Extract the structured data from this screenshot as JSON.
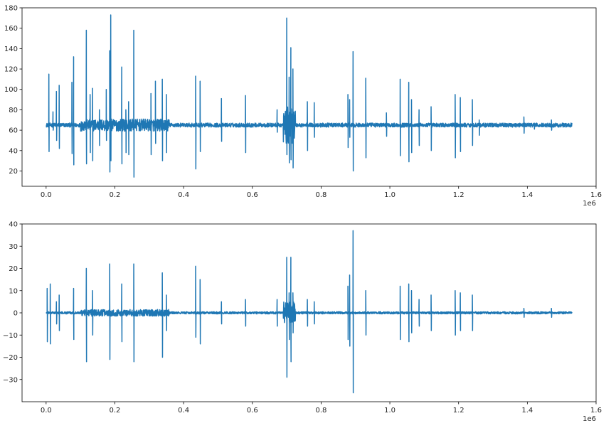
{
  "chart_data": [
    {
      "type": "line",
      "color": "#1f77b4",
      "xlim": [
        -70000,
        1600000
      ],
      "ylim": [
        5,
        180
      ],
      "x_ticks": [
        0,
        200000,
        400000,
        600000,
        800000,
        1000000,
        1200000,
        1400000,
        1600000
      ],
      "x_tick_labels": [
        "0.0",
        "0.2",
        "0.4",
        "0.6",
        "0.8",
        "1.0",
        "1.2",
        "1.4",
        "1.6"
      ],
      "x_offset_label": "1e6",
      "y_ticks": [
        20,
        40,
        60,
        80,
        100,
        120,
        140,
        160,
        180
      ],
      "y_tick_labels": [
        "20",
        "40",
        "60",
        "80",
        "100",
        "120",
        "140",
        "160",
        "180"
      ],
      "x_range": [
        0,
        1530000
      ],
      "baseline": 65,
      "noise": 2,
      "noisy_regions": [
        [
          100000,
          360000,
          6
        ],
        [
          690000,
          725000,
          18
        ]
      ],
      "spikes": [
        [
          8000,
          115,
          39
        ],
        [
          20000,
          78,
          60
        ],
        [
          30000,
          98,
          50
        ],
        [
          38000,
          104,
          42
        ],
        [
          75000,
          107,
          37
        ],
        [
          80000,
          132,
          26
        ],
        [
          117000,
          158,
          27
        ],
        [
          128000,
          95,
          38
        ],
        [
          135000,
          101,
          30
        ],
        [
          155000,
          80,
          45
        ],
        [
          175000,
          100,
          50
        ],
        [
          185000,
          138,
          19
        ],
        [
          188000,
          173,
          30
        ],
        [
          220000,
          122,
          27
        ],
        [
          232000,
          80,
          38
        ],
        [
          240000,
          88,
          36
        ],
        [
          255000,
          158,
          14
        ],
        [
          305000,
          96,
          36
        ],
        [
          318000,
          108,
          47
        ],
        [
          338000,
          110,
          30
        ],
        [
          350000,
          95,
          38
        ],
        [
          435000,
          113,
          22
        ],
        [
          448000,
          108,
          39
        ],
        [
          510000,
          91,
          49
        ],
        [
          580000,
          94,
          38
        ],
        [
          672000,
          80,
          58
        ],
        [
          700000,
          170,
          36
        ],
        [
          707000,
          112,
          28
        ],
        [
          712000,
          141,
          31
        ],
        [
          718000,
          120,
          23
        ],
        [
          760000,
          88,
          40
        ],
        [
          780000,
          87,
          53
        ],
        [
          878000,
          95,
          43
        ],
        [
          883000,
          90,
          53
        ],
        [
          893000,
          137,
          20
        ],
        [
          930000,
          111,
          33
        ],
        [
          990000,
          77,
          54
        ],
        [
          1030000,
          110,
          35
        ],
        [
          1055000,
          107,
          29
        ],
        [
          1063000,
          90,
          38
        ],
        [
          1085000,
          80,
          45
        ],
        [
          1120000,
          83,
          40
        ],
        [
          1190000,
          95,
          33
        ],
        [
          1205000,
          92,
          39
        ],
        [
          1240000,
          90,
          45
        ],
        [
          1260000,
          70,
          55
        ],
        [
          1390000,
          73,
          57
        ],
        [
          1420000,
          67,
          61
        ],
        [
          1470000,
          70,
          60
        ]
      ]
    },
    {
      "type": "line",
      "color": "#1f77b4",
      "xlim": [
        -70000,
        1600000
      ],
      "ylim": [
        -40,
        40
      ],
      "x_ticks": [
        0,
        200000,
        400000,
        600000,
        800000,
        1000000,
        1200000,
        1400000,
        1600000
      ],
      "x_tick_labels": [
        "0.0",
        "0.2",
        "0.4",
        "0.6",
        "0.8",
        "1.0",
        "1.2",
        "1.4",
        "1.6"
      ],
      "x_offset_label": "1e6",
      "y_ticks": [
        -30,
        -20,
        -10,
        0,
        10,
        20,
        30,
        40
      ],
      "y_tick_labels": [
        "−30",
        "−20",
        "−10",
        "0",
        "10",
        "20",
        "30",
        "40"
      ],
      "x_range": [
        0,
        1530000
      ],
      "baseline": 0,
      "noise": 0.5,
      "noisy_regions": [
        [
          100000,
          360000,
          1.5
        ],
        [
          690000,
          725000,
          5
        ]
      ],
      "spikes": [
        [
          3000,
          11,
          -13
        ],
        [
          12000,
          13,
          -14
        ],
        [
          30000,
          5,
          -5
        ],
        [
          38000,
          8,
          -8
        ],
        [
          80000,
          11,
          -12
        ],
        [
          117000,
          20,
          -22
        ],
        [
          135000,
          10,
          -10
        ],
        [
          185000,
          22,
          -21
        ],
        [
          220000,
          13,
          -13
        ],
        [
          255000,
          22,
          -22
        ],
        [
          338000,
          18,
          -20
        ],
        [
          350000,
          8,
          -8
        ],
        [
          435000,
          21,
          -11
        ],
        [
          448000,
          15,
          -14
        ],
        [
          510000,
          5,
          -5
        ],
        [
          580000,
          6,
          -6
        ],
        [
          672000,
          6,
          -6
        ],
        [
          700000,
          25,
          -29
        ],
        [
          707000,
          9,
          -12
        ],
        [
          712000,
          25,
          -22
        ],
        [
          718000,
          9,
          -9
        ],
        [
          760000,
          6,
          -6
        ],
        [
          780000,
          5,
          -5
        ],
        [
          878000,
          12,
          -12
        ],
        [
          883000,
          17,
          -15
        ],
        [
          893000,
          37,
          -36
        ],
        [
          930000,
          10,
          -10
        ],
        [
          1030000,
          12,
          -12
        ],
        [
          1055000,
          13,
          -13
        ],
        [
          1063000,
          10,
          -9
        ],
        [
          1085000,
          6,
          -6
        ],
        [
          1120000,
          8,
          -8
        ],
        [
          1190000,
          10,
          -10
        ],
        [
          1205000,
          9,
          -8
        ],
        [
          1240000,
          8,
          -8
        ],
        [
          1390000,
          2,
          -2
        ],
        [
          1470000,
          2,
          -2
        ]
      ]
    }
  ]
}
